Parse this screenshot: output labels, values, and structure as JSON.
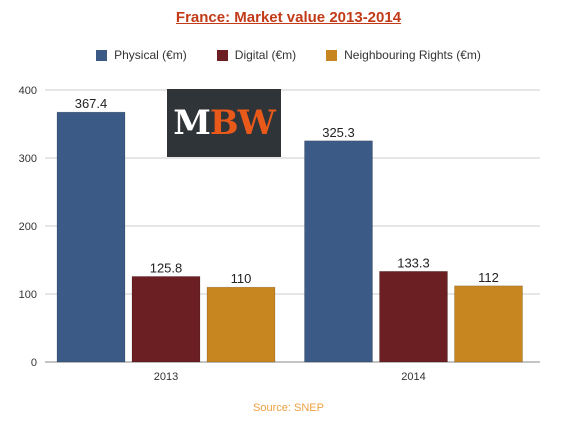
{
  "chart_data": {
    "type": "bar",
    "title": "France: Market value 2013-2014",
    "categories": [
      "2013",
      "2014"
    ],
    "series": [
      {
        "name": "Physical (€m)",
        "color": "#3b5a85",
        "values": [
          367.4,
          325.3
        ],
        "labels": [
          "367.4",
          "325.3"
        ]
      },
      {
        "name": "Digital (€m)",
        "color": "#6b1f22",
        "values": [
          125.8,
          133.3
        ],
        "labels": [
          "125.8",
          "133.3"
        ]
      },
      {
        "name": "Neighbouring Rights (€m)",
        "color": "#c7861f",
        "values": [
          110,
          112
        ],
        "labels": [
          "110",
          "112"
        ]
      }
    ],
    "ylim": [
      0,
      400
    ],
    "yticks": [
      "0",
      "100",
      "200",
      "300",
      "400"
    ],
    "grid": true,
    "legend": "top",
    "source": "Source: SNEP"
  },
  "logo": {
    "text_a": "M",
    "text_b": "BW",
    "color_a": "#ffffff",
    "color_b": "#e8591a"
  }
}
